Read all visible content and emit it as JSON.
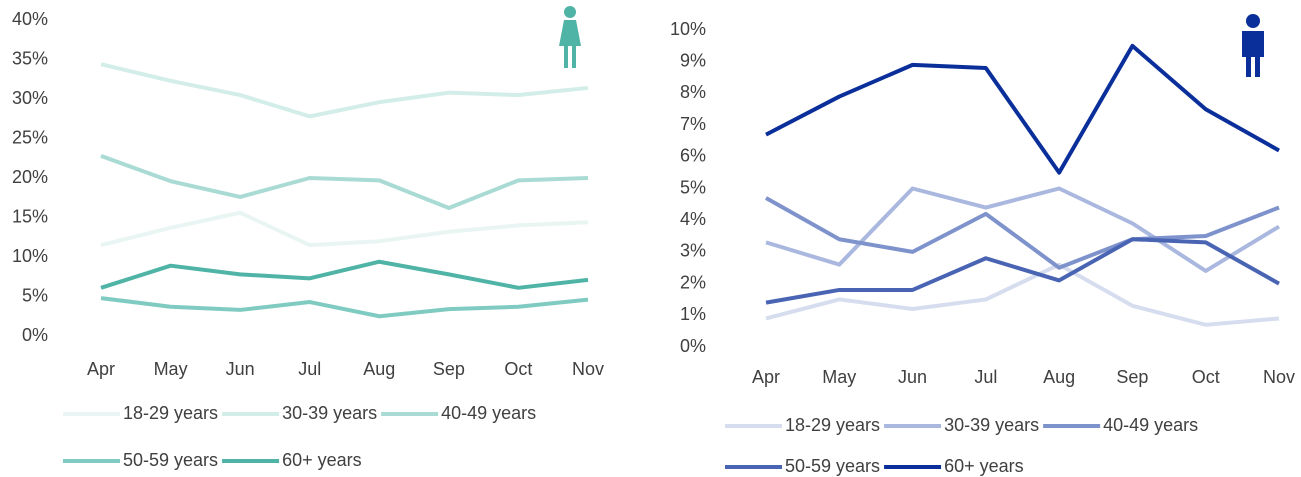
{
  "chart_data": [
    {
      "type": "line",
      "categories": [
        "Apr",
        "May",
        "Jun",
        "Jul",
        "Aug",
        "Sep",
        "Oct",
        "Nov"
      ],
      "ylim": [
        0,
        40
      ],
      "yticks": [
        {
          "value": 0,
          "label": "0%"
        },
        {
          "value": 5,
          "label": "5%"
        },
        {
          "value": 10,
          "label": "10%"
        },
        {
          "value": 15,
          "label": "15%"
        },
        {
          "value": 20,
          "label": "20%"
        },
        {
          "value": 25,
          "label": "25%"
        },
        {
          "value": 30,
          "label": "30%"
        },
        {
          "value": 35,
          "label": "35%"
        },
        {
          "value": 40,
          "label": "40%"
        }
      ],
      "grid": false,
      "legend": "bottom",
      "series": [
        {
          "name": "18-29 years",
          "color": "#e9f5f3",
          "values": [
            11.5,
            13.7,
            15.6,
            11.5,
            12,
            13.2,
            14,
            14.4
          ]
        },
        {
          "name": "30-39 years",
          "color": "#d3ede9",
          "values": [
            34.4,
            32.3,
            30.5,
            27.8,
            29.6,
            30.8,
            30.5,
            31.4
          ]
        },
        {
          "name": "40-49 years",
          "color": "#a9dbd4",
          "values": [
            22.8,
            19.6,
            17.6,
            20,
            19.7,
            16.2,
            19.7,
            20
          ]
        },
        {
          "name": "50-59 years",
          "color": "#80cbc1",
          "values": [
            4.8,
            3.7,
            3.3,
            4.3,
            2.5,
            3.4,
            3.7,
            4.6
          ]
        },
        {
          "name": "60+ years",
          "color": "#4fb3a6",
          "values": [
            6.1,
            8.9,
            7.8,
            7.3,
            9.4,
            7.8,
            6.1,
            7.1
          ]
        }
      ]
    },
    {
      "type": "line",
      "categories": [
        "Apr",
        "May",
        "Jun",
        "Jul",
        "Aug",
        "Sep",
        "Oct",
        "Nov"
      ],
      "ylim": [
        0,
        10
      ],
      "yticks": [
        {
          "value": 0,
          "label": "0%"
        },
        {
          "value": 1,
          "label": "1%"
        },
        {
          "value": 2,
          "label": "2%"
        },
        {
          "value": 3,
          "label": "3%"
        },
        {
          "value": 4,
          "label": "4%"
        },
        {
          "value": 5,
          "label": "5%"
        },
        {
          "value": 6,
          "label": "6%"
        },
        {
          "value": 7,
          "label": "7%"
        },
        {
          "value": 8,
          "label": "8%"
        },
        {
          "value": 9,
          "label": "9%"
        },
        {
          "value": 10,
          "label": "10%"
        }
      ],
      "grid": false,
      "legend": "bottom",
      "series": [
        {
          "name": "18-29 years",
          "color": "#d6ddef",
          "values": [
            0.9,
            1.5,
            1.2,
            1.5,
            2.6,
            1.3,
            0.7,
            0.9
          ]
        },
        {
          "name": "30-39 years",
          "color": "#aab8df",
          "values": [
            3.3,
            2.6,
            5.0,
            4.4,
            5.0,
            3.9,
            2.4,
            3.8
          ]
        },
        {
          "name": "40-49 years",
          "color": "#7e92cc",
          "values": [
            4.7,
            3.4,
            3.0,
            4.2,
            2.5,
            3.4,
            3.5,
            4.4
          ]
        },
        {
          "name": "50-59 years",
          "color": "#4a64b4",
          "values": [
            1.4,
            1.8,
            1.8,
            2.8,
            2.1,
            3.4,
            3.3,
            2.0
          ]
        },
        {
          "name": "60+ years",
          "color": "#0a2f9a",
          "values": [
            6.7,
            7.9,
            8.9,
            8.8,
            5.5,
            9.5,
            7.5,
            6.2
          ]
        }
      ]
    }
  ]
}
